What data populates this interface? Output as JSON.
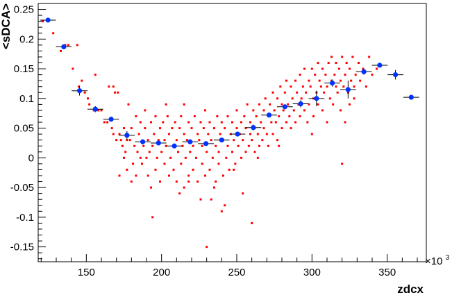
{
  "chart_data": {
    "type": "scatter",
    "title": "",
    "xlabel": "zdcx",
    "ylabel": "<sDCA>",
    "x_exponent_label": "×10",
    "x_exponent_power": "3",
    "xlim": [
      118,
      376
    ],
    "ylim": [
      -0.175,
      0.26
    ],
    "xticks": [
      150,
      200,
      250,
      300,
      350
    ],
    "xtick_labels": [
      "150",
      "200",
      "250",
      "300",
      "350"
    ],
    "yticks": [
      -0.15,
      -0.1,
      -0.05,
      0,
      0.05,
      0.1,
      0.15,
      0.2,
      0.25
    ],
    "ytick_labels": [
      "-0.15",
      "-0.1",
      "-0.05",
      "0",
      "0.05",
      "0.1",
      "0.15",
      "0.2",
      "0.25"
    ],
    "grid": false,
    "colors": {
      "scatter": "#ff0000",
      "profile": "#0033ff",
      "errorbar": "#000000",
      "frame": "#000000"
    },
    "profile": {
      "x": [
        124.5,
        135,
        145.5,
        156,
        166.5,
        177,
        187.5,
        198,
        208.5,
        219,
        229.5,
        240,
        250.5,
        261,
        271.5,
        282,
        292.5,
        303,
        313.5,
        324,
        334.5,
        345,
        355.5,
        366
      ],
      "y": [
        0.232,
        0.187,
        0.113,
        0.082,
        0.065,
        0.038,
        0.027,
        0.025,
        0.02,
        0.027,
        0.024,
        0.03,
        0.04,
        0.051,
        0.072,
        0.086,
        0.091,
        0.1,
        0.126,
        0.115,
        0.145,
        0.156,
        0.14,
        0.102
      ],
      "yerr": [
        0.002,
        0.003,
        0.008,
        0.005,
        0.004,
        0.007,
        0.003,
        0.003,
        0.004,
        0.003,
        0.003,
        0.003,
        0.004,
        0.005,
        0.003,
        0.004,
        0.006,
        0.013,
        0.006,
        0.015,
        0.005,
        0.004,
        0.008,
        0.003
      ],
      "xerr": 5.25
    },
    "scatter_points": [
      [
        121,
        0.23
      ],
      [
        128,
        0.21
      ],
      [
        133,
        0.18
      ],
      [
        136,
        0.19
      ],
      [
        138,
        0.19
      ],
      [
        141,
        0.15
      ],
      [
        144,
        0.19
      ],
      [
        145,
        0.12
      ],
      [
        147,
        0.13
      ],
      [
        149,
        0.11
      ],
      [
        151,
        0.1
      ],
      [
        152,
        0.09
      ],
      [
        155,
        0.08
      ],
      [
        156,
        0.14
      ],
      [
        158,
        0.08
      ],
      [
        160,
        0.08
      ],
      [
        162,
        0.06
      ],
      [
        164,
        0.06
      ],
      [
        165,
        0.12
      ],
      [
        167,
        0.05
      ],
      [
        168,
        0.04
      ],
      [
        169,
        0.11
      ],
      [
        170,
        0.03
      ],
      [
        171,
        0.11
      ],
      [
        172,
        0.04
      ],
      [
        173,
        0.03
      ],
      [
        174,
        0.02
      ],
      [
        175,
        0.05
      ],
      [
        175,
        0.0
      ],
      [
        176,
        0.01
      ],
      [
        177,
        0.03
      ],
      [
        177,
        -0.02
      ],
      [
        178,
        0.09
      ],
      [
        179,
        0.03
      ],
      [
        180,
        -0.04
      ],
      [
        180,
        0.05
      ],
      [
        181,
        -0.01
      ],
      [
        182,
        0.02
      ],
      [
        183,
        -0.03
      ],
      [
        183,
        0.07
      ],
      [
        184,
        0.01
      ],
      [
        185,
        0.04
      ],
      [
        186,
        0.0
      ],
      [
        186,
        0.06
      ],
      [
        187,
        -0.01
      ],
      [
        188,
        0.02
      ],
      [
        189,
        0.05
      ],
      [
        189,
        0.08
      ],
      [
        190,
        0.0
      ],
      [
        191,
        0.03
      ],
      [
        191,
        -0.03
      ],
      [
        192,
        0.01
      ],
      [
        193,
        -0.05
      ],
      [
        193,
        0.06
      ],
      [
        194,
        0.02
      ],
      [
        195,
        0.04
      ],
      [
        196,
        -0.02
      ],
      [
        196,
        0.07
      ],
      [
        197,
        0.0
      ],
      [
        198,
        0.03
      ],
      [
        199,
        -0.04
      ],
      [
        199,
        0.05
      ],
      [
        200,
        0.01
      ],
      [
        201,
        0.06
      ],
      [
        202,
        -0.01
      ],
      [
        202,
        0.03
      ],
      [
        203,
        0.02
      ],
      [
        204,
        0.07
      ],
      [
        205,
        -0.03
      ],
      [
        205,
        0.04
      ],
      [
        206,
        0.0
      ],
      [
        207,
        0.05
      ],
      [
        208,
        -0.02
      ],
      [
        208,
        0.02
      ],
      [
        209,
        0.06
      ],
      [
        210,
        -0.04
      ],
      [
        210,
        0.03
      ],
      [
        211,
        0.01
      ],
      [
        212,
        0.05
      ],
      [
        213,
        -0.01
      ],
      [
        213,
        0.07
      ],
      [
        214,
        0.02
      ],
      [
        215,
        -0.05
      ],
      [
        215,
        0.04
      ],
      [
        216,
        0.0
      ],
      [
        217,
        0.03
      ],
      [
        218,
        0.06
      ],
      [
        218,
        -0.03
      ],
      [
        219,
        0.01
      ],
      [
        220,
        0.05
      ],
      [
        221,
        -0.02
      ],
      [
        221,
        0.02
      ],
      [
        222,
        0.07
      ],
      [
        223,
        0.0
      ],
      [
        224,
        0.04
      ],
      [
        224,
        -0.04
      ],
      [
        225,
        0.03
      ],
      [
        226,
        0.06
      ],
      [
        227,
        -0.01
      ],
      [
        227,
        0.02
      ],
      [
        228,
        0.05
      ],
      [
        229,
        -0.03
      ],
      [
        229,
        0.08
      ],
      [
        230,
        0.01
      ],
      [
        231,
        0.04
      ],
      [
        232,
        -0.02
      ],
      [
        232,
        0.06
      ],
      [
        233,
        0.03
      ],
      [
        234,
        0.0
      ],
      [
        235,
        0.05
      ],
      [
        235,
        -0.05
      ],
      [
        236,
        0.02
      ],
      [
        237,
        0.07
      ],
      [
        238,
        0.01
      ],
      [
        238,
        -0.01
      ],
      [
        239,
        0.04
      ],
      [
        240,
        0.06
      ],
      [
        241,
        -0.03
      ],
      [
        241,
        0.03
      ],
      [
        242,
        0.05
      ],
      [
        243,
        0.0
      ],
      [
        244,
        0.07
      ],
      [
        244,
        0.02
      ],
      [
        245,
        -0.02
      ],
      [
        246,
        0.04
      ],
      [
        247,
        0.06
      ],
      [
        247,
        0.01
      ],
      [
        248,
        0.03
      ],
      [
        249,
        -0.01
      ],
      [
        250,
        0.05
      ],
      [
        250,
        0.08
      ],
      [
        251,
        0.02
      ],
      [
        252,
        0.04
      ],
      [
        253,
        0.06
      ],
      [
        253,
        0.0
      ],
      [
        254,
        0.03
      ],
      [
        255,
        0.07
      ],
      [
        256,
        0.01
      ],
      [
        256,
        0.05
      ],
      [
        257,
        0.09
      ],
      [
        258,
        0.02
      ],
      [
        259,
        0.04
      ],
      [
        259,
        0.06
      ],
      [
        260,
        0.03
      ],
      [
        261,
        0.08
      ],
      [
        262,
        0.05
      ],
      [
        262,
        0.01
      ],
      [
        263,
        0.07
      ],
      [
        264,
        0.04
      ],
      [
        265,
        0.09
      ],
      [
        265,
        0.02
      ],
      [
        266,
        0.06
      ],
      [
        267,
        0.03
      ],
      [
        268,
        0.08
      ],
      [
        268,
        0.05
      ],
      [
        269,
        0.1
      ],
      [
        270,
        0.04
      ],
      [
        271,
        0.07
      ],
      [
        271,
        0.02
      ],
      [
        272,
        0.09
      ],
      [
        273,
        0.06
      ],
      [
        274,
        0.11
      ],
      [
        274,
        0.04
      ],
      [
        275,
        0.08
      ],
      [
        276,
        0.06
      ],
      [
        277,
        0.1
      ],
      [
        277,
        0.03
      ],
      [
        278,
        0.07
      ],
      [
        279,
        0.12
      ],
      [
        280,
        0.05
      ],
      [
        280,
        0.09
      ],
      [
        281,
        0.08
      ],
      [
        282,
        0.11
      ],
      [
        283,
        0.06
      ],
      [
        283,
        0.13
      ],
      [
        284,
        0.09
      ],
      [
        285,
        0.07
      ],
      [
        286,
        0.12
      ],
      [
        286,
        0.05
      ],
      [
        287,
        0.1
      ],
      [
        288,
        0.08
      ],
      [
        289,
        0.13
      ],
      [
        289,
        0.06
      ],
      [
        290,
        0.11
      ],
      [
        291,
        0.09
      ],
      [
        292,
        0.14
      ],
      [
        292,
        0.07
      ],
      [
        293,
        0.1
      ],
      [
        294,
        0.12
      ],
      [
        295,
        0.08
      ],
      [
        295,
        0.15
      ],
      [
        296,
        0.11
      ],
      [
        297,
        0.06
      ],
      [
        298,
        0.13
      ],
      [
        298,
        0.09
      ],
      [
        299,
        0.12
      ],
      [
        300,
        0.15
      ],
      [
        301,
        0.1
      ],
      [
        301,
        0.07
      ],
      [
        302,
        0.14
      ],
      [
        303,
        0.11
      ],
      [
        304,
        0.16
      ],
      [
        304,
        0.09
      ],
      [
        305,
        0.13
      ],
      [
        306,
        0.12
      ],
      [
        307,
        0.08
      ],
      [
        307,
        0.15
      ],
      [
        308,
        0.11
      ],
      [
        309,
        0.14
      ],
      [
        310,
        0.06
      ],
      [
        310,
        0.12
      ],
      [
        311,
        0.16
      ],
      [
        312,
        0.1
      ],
      [
        313,
        0.13
      ],
      [
        313,
        0.17
      ],
      [
        314,
        0.09
      ],
      [
        315,
        0.14
      ],
      [
        316,
        0.12
      ],
      [
        316,
        0.16
      ],
      [
        317,
        0.11
      ],
      [
        318,
        0.15
      ],
      [
        319,
        0.13
      ],
      [
        319,
        0.08
      ],
      [
        320,
        0.17
      ],
      [
        321,
        0.12
      ],
      [
        322,
        0.14
      ],
      [
        322,
        0.06
      ],
      [
        323,
        0.16
      ],
      [
        324,
        0.11
      ],
      [
        325,
        0.15
      ],
      [
        325,
        0.09
      ],
      [
        326,
        0.13
      ],
      [
        327,
        0.17
      ],
      [
        328,
        0.12
      ],
      [
        328,
        0.1
      ],
      [
        329,
        0.14
      ],
      [
        331,
        0.16
      ],
      [
        332,
        0.13
      ],
      [
        334,
        0.15
      ],
      [
        336,
        0.12
      ],
      [
        338,
        0.17
      ],
      [
        340,
        0.14
      ],
      [
        343,
        0.15
      ],
      [
        320,
        -0.01
      ],
      [
        260,
        -0.11
      ],
      [
        230,
        -0.15
      ],
      [
        226,
        -0.07
      ],
      [
        240,
        -0.09
      ],
      [
        236,
        -0.04
      ],
      [
        212,
        -0.06
      ],
      [
        194,
        -0.1
      ],
      [
        278,
        0.02
      ],
      [
        254,
        -0.06
      ],
      [
        300,
        0.04
      ],
      [
        172,
        -0.03
      ],
      [
        168,
        0.12
      ],
      [
        203,
        0.09
      ],
      [
        215,
        0.09
      ],
      [
        242,
        -0.08
      ],
      [
        248,
        -0.02
      ],
      [
        233,
        -0.07
      ],
      [
        218,
        -0.04
      ],
      [
        264,
        0.0
      ]
    ]
  }
}
